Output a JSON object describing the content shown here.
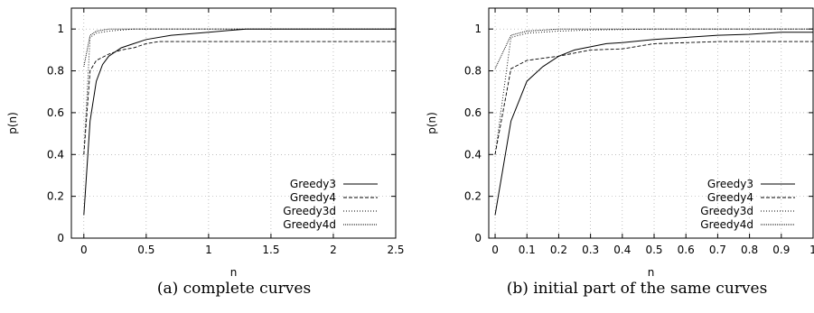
{
  "chart_data": [
    {
      "type": "line",
      "caption": "(a) complete curves",
      "xlabel": "n",
      "ylabel": "p(n)",
      "xlim": [
        -0.1,
        2.5
      ],
      "ylim": [
        0,
        1.1
      ],
      "xticks": [
        0,
        0.5,
        1,
        1.5,
        2,
        2.5
      ],
      "xtick_labels": [
        "0",
        "0.5",
        "1",
        "1.5",
        "2",
        "2.5"
      ],
      "yticks": [
        0,
        0.2,
        0.4,
        0.6,
        0.8,
        1
      ],
      "ytick_labels": [
        "0",
        "0.2",
        "0.4",
        "0.6",
        "0.8",
        "1"
      ],
      "grid": true,
      "legend": "bottom-right",
      "series": [
        {
          "name": "Greedy3",
          "style": "solid",
          "x": [
            0,
            0.05,
            0.1,
            0.15,
            0.2,
            0.3,
            0.4,
            0.5,
            0.7,
            1.0,
            1.3,
            1.5,
            2.0,
            2.5
          ],
          "y": [
            0.11,
            0.56,
            0.75,
            0.83,
            0.87,
            0.91,
            0.93,
            0.95,
            0.97,
            0.985,
            1.0,
            1.0,
            1.0,
            1.0
          ]
        },
        {
          "name": "Greedy4",
          "style": "dashed",
          "x": [
            0,
            0.05,
            0.1,
            0.2,
            0.3,
            0.4,
            0.5,
            0.6,
            1.0,
            1.5,
            2.0,
            2.5
          ],
          "y": [
            0.4,
            0.8,
            0.85,
            0.88,
            0.9,
            0.91,
            0.93,
            0.94,
            0.94,
            0.94,
            0.94,
            0.94
          ]
        },
        {
          "name": "Greedy3d",
          "style": "dotted",
          "x": [
            0,
            0.05,
            0.1,
            0.2,
            0.4,
            1.0,
            1.5,
            2.5
          ],
          "y": [
            0.4,
            0.96,
            0.98,
            0.99,
            1.0,
            1.0,
            1.0,
            1.0
          ]
        },
        {
          "name": "Greedy4d",
          "style": "densedot",
          "x": [
            0,
            0.05,
            0.1,
            0.2,
            0.5,
            1.0,
            2.5
          ],
          "y": [
            0.82,
            0.97,
            0.99,
            1.0,
            1.0,
            1.0,
            1.0
          ]
        }
      ]
    },
    {
      "type": "line",
      "caption": "(b) initial part of the same curves",
      "xlabel": "n",
      "ylabel": "p(n)",
      "xlim": [
        -0.02,
        1.0
      ],
      "ylim": [
        0,
        1.1
      ],
      "xticks": [
        0,
        0.1,
        0.2,
        0.3,
        0.4,
        0.5,
        0.6,
        0.7,
        0.8,
        0.9,
        1
      ],
      "xtick_labels": [
        "0",
        "0.1",
        "0.2",
        "0.3",
        "0.4",
        "0.5",
        "0.6",
        "0.7",
        "0.8",
        "0.9",
        "1"
      ],
      "yticks": [
        0,
        0.2,
        0.4,
        0.6,
        0.8,
        1
      ],
      "ytick_labels": [
        "0",
        "0.2",
        "0.4",
        "0.6",
        "0.8",
        "1"
      ],
      "grid": true,
      "legend": "bottom-right",
      "series": [
        {
          "name": "Greedy3",
          "style": "solid",
          "x": [
            0,
            0.05,
            0.1,
            0.15,
            0.2,
            0.25,
            0.3,
            0.35,
            0.4,
            0.5,
            0.6,
            0.7,
            0.8,
            0.9,
            1.0
          ],
          "y": [
            0.11,
            0.56,
            0.75,
            0.82,
            0.87,
            0.9,
            0.915,
            0.93,
            0.935,
            0.95,
            0.96,
            0.97,
            0.975,
            0.985,
            0.985
          ]
        },
        {
          "name": "Greedy4",
          "style": "dashed",
          "x": [
            0,
            0.05,
            0.1,
            0.15,
            0.2,
            0.3,
            0.4,
            0.5,
            0.6,
            0.7,
            1.0
          ],
          "y": [
            0.4,
            0.81,
            0.85,
            0.86,
            0.87,
            0.9,
            0.905,
            0.93,
            0.935,
            0.94,
            0.94
          ]
        },
        {
          "name": "Greedy3d",
          "style": "dotted",
          "x": [
            0,
            0.05,
            0.1,
            0.2,
            0.3,
            0.5,
            1.0
          ],
          "y": [
            0.4,
            0.96,
            0.98,
            0.99,
            0.995,
            1.0,
            1.0
          ]
        },
        {
          "name": "Greedy4d",
          "style": "densedot",
          "x": [
            0,
            0.05,
            0.1,
            0.2,
            0.4,
            1.0
          ],
          "y": [
            0.81,
            0.97,
            0.99,
            1.0,
            1.0,
            1.0
          ]
        }
      ]
    }
  ]
}
